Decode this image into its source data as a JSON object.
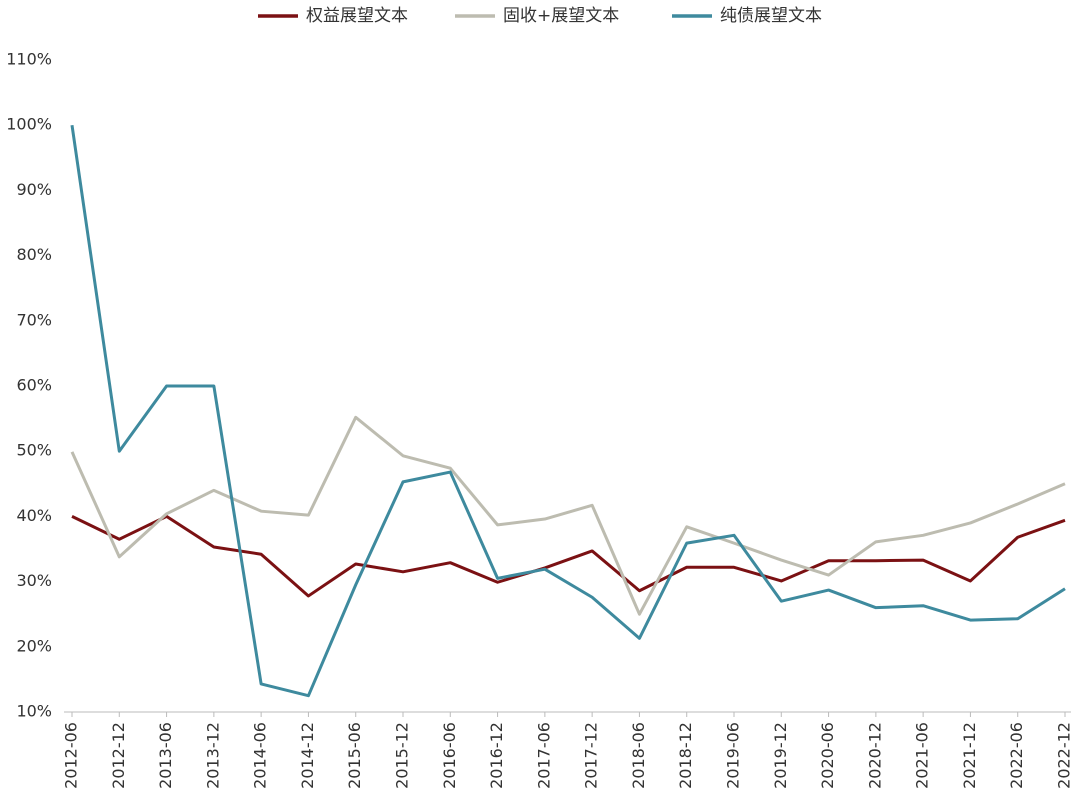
{
  "chart_data": {
    "type": "line",
    "categories": [
      "2012-06",
      "2012-12",
      "2013-06",
      "2013-12",
      "2014-06",
      "2014-12",
      "2015-06",
      "2015-12",
      "2016-06",
      "2016-12",
      "2017-06",
      "2017-12",
      "2018-06",
      "2018-12",
      "2019-06",
      "2019-12",
      "2020-06",
      "2020-12",
      "2021-06",
      "2021-12",
      "2022-06",
      "2022-12"
    ],
    "series": [
      {
        "name": "权益展望文本",
        "color": "#7b1113",
        "values": [
          40,
          36.5,
          40,
          35.3,
          34.2,
          27.8,
          32.7,
          31.5,
          32.9,
          29.9,
          32.1,
          34.7,
          28.6,
          32.2,
          32.2,
          30.1,
          33.2,
          33.2,
          33.3,
          30.1,
          36.8,
          39.4
        ]
      },
      {
        "name": "固收+展望文本",
        "color": "#bdbcb0",
        "values": [
          49.9,
          33.8,
          40.4,
          44,
          40.8,
          40.2,
          55.2,
          49.3,
          47.4,
          38.7,
          39.6,
          41.7,
          25,
          38.4,
          35.9,
          33.3,
          31,
          36.1,
          37.1,
          39,
          41.9,
          45
        ]
      },
      {
        "name": "纯债展望文本",
        "color": "#3e8a9e",
        "values": [
          100,
          50,
          60,
          60,
          14.3,
          12.5,
          29.5,
          45.3,
          46.8,
          30.5,
          31.9,
          27.6,
          21.3,
          35.9,
          37.1,
          27,
          28.7,
          26,
          26.3,
          24.1,
          24.3,
          28.9
        ]
      }
    ],
    "ylim": [
      10,
      110
    ],
    "yticks": [
      {
        "value": 10,
        "label": "10%"
      },
      {
        "value": 20,
        "label": "20%"
      },
      {
        "value": 30,
        "label": "30%"
      },
      {
        "value": 40,
        "label": "40%"
      },
      {
        "value": 50,
        "label": "50%"
      },
      {
        "value": 60,
        "label": "60%"
      },
      {
        "value": 70,
        "label": "70%"
      },
      {
        "value": 80,
        "label": "80%"
      },
      {
        "value": 90,
        "label": "90%"
      },
      {
        "value": 100,
        "label": "100%"
      },
      {
        "value": 110,
        "label": "110%"
      }
    ],
    "legend": "top"
  }
}
